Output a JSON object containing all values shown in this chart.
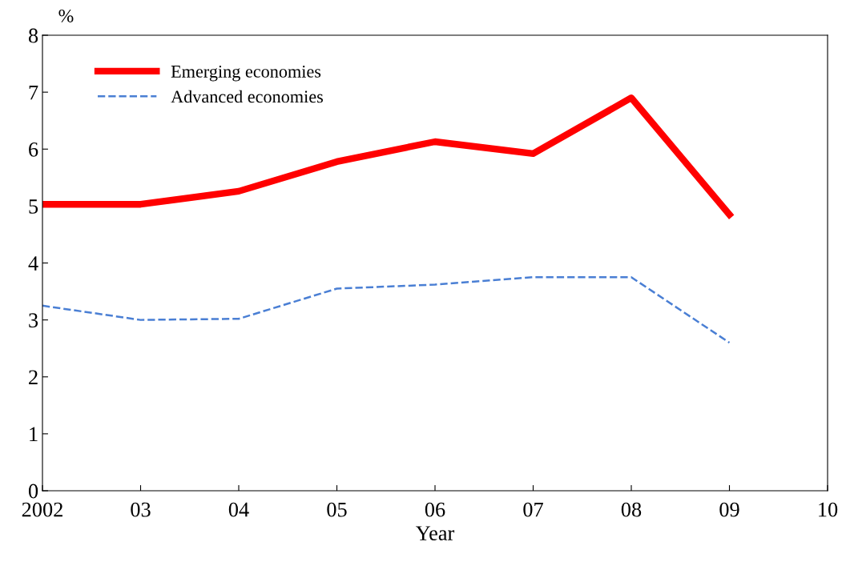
{
  "chart_data": {
    "type": "line",
    "xlabel": "Year",
    "ylabel": "%",
    "x": [
      2002,
      2003,
      2004,
      2005,
      2006,
      2007,
      2008,
      2009
    ],
    "series": [
      {
        "name": "Emerging economies",
        "color": "#ff0000",
        "values": [
          5.03,
          5.03,
          5.26,
          5.78,
          6.13,
          5.92,
          6.9,
          4.85
        ],
        "line_style": "solid"
      },
      {
        "name": "Advanced economies",
        "color": "#4a7fd4",
        "values": [
          3.25,
          3.0,
          3.02,
          3.55,
          3.62,
          3.75,
          3.75,
          2.6
        ],
        "line_style": "dashed"
      }
    ],
    "xlim": [
      2002,
      2010
    ],
    "ylim": [
      0,
      8
    ],
    "xticks": [
      {
        "value": 2002,
        "label": "2002"
      },
      {
        "value": 2003,
        "label": "03"
      },
      {
        "value": 2004,
        "label": "04"
      },
      {
        "value": 2005,
        "label": "05"
      },
      {
        "value": 2006,
        "label": "06"
      },
      {
        "value": 2007,
        "label": "07"
      },
      {
        "value": 2008,
        "label": "08"
      },
      {
        "value": 2009,
        "label": "09"
      },
      {
        "value": 2010,
        "label": "10"
      }
    ],
    "yticks": [
      0,
      1,
      2,
      3,
      4,
      5,
      6,
      7,
      8
    ],
    "legend": "top left",
    "grid": false,
    "marker": "none"
  }
}
